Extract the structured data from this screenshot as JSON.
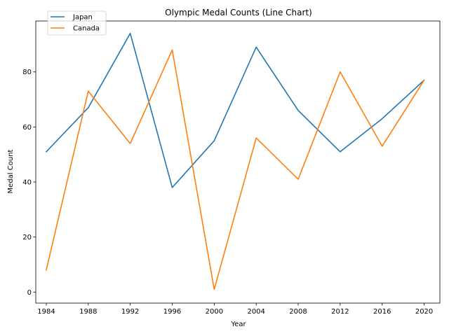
{
  "chart_data": {
    "type": "line",
    "title": "Olympic Medal Counts (Line Chart)",
    "xlabel": "Year",
    "ylabel": "Medal Count",
    "x": [
      1984,
      1988,
      1992,
      1996,
      2000,
      2004,
      2008,
      2012,
      2016,
      2020
    ],
    "xlim": [
      1983,
      2021.5
    ],
    "ylim": [
      -4,
      98.5
    ],
    "xticks": [
      1984,
      1988,
      1992,
      1996,
      2000,
      2004,
      2008,
      2012,
      2016,
      2020
    ],
    "yticks": [
      0,
      20,
      40,
      60,
      80
    ],
    "grid": false,
    "legend_position": "top-left",
    "series": [
      {
        "name": "Japan",
        "color": "#1f77b4",
        "values": [
          51,
          67,
          94,
          38,
          55,
          89,
          66,
          51,
          63,
          77
        ]
      },
      {
        "name": "Canada",
        "color": "#ff7f0e",
        "values": [
          8,
          73,
          54,
          88,
          1,
          56,
          41,
          80,
          53,
          77
        ]
      }
    ]
  }
}
